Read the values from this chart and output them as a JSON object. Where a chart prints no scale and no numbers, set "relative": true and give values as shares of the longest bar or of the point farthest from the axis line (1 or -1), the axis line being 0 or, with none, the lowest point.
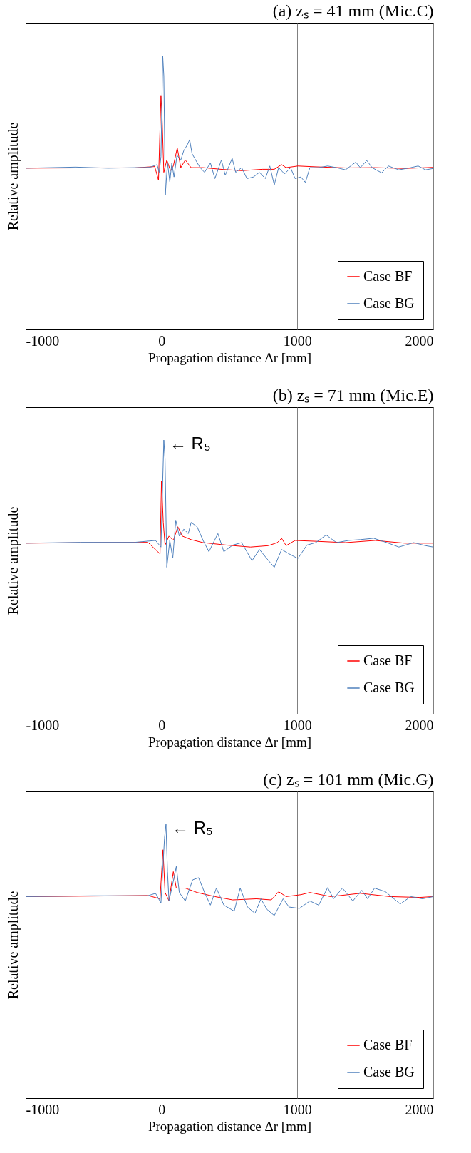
{
  "chart_data": [
    {
      "type": "line",
      "title": "(a) zₛ = 41 mm (Mic.C)",
      "xlabel": "Propagation distance Δr [mm]",
      "ylabel": "Relative amplitude",
      "relative": true,
      "xlim": [
        -1000,
        2000
      ],
      "xticks": [
        -1000,
        0,
        1000,
        2000
      ],
      "grid": "x",
      "legend": "bottom right",
      "series": [
        {
          "name": "Case BF",
          "color": "#ff0000",
          "x": [
            -1000,
            -600,
            -200,
            -50,
            -22,
            -4,
            4,
            17,
            39,
            66,
            87,
            116,
            142,
            175,
            218,
            306,
            437,
            590,
            742,
            830,
            884,
            917,
            1004,
            1135,
            1354,
            1572,
            1790,
            2000
          ],
          "values": [
            0.589,
            0.59,
            0.59,
            0.595,
            0.545,
            0.855,
            0.778,
            0.574,
            0.619,
            0.58,
            0.597,
            0.663,
            0.591,
            0.619,
            0.591,
            0.591,
            0.585,
            0.58,
            0.585,
            0.585,
            0.602,
            0.591,
            0.597,
            0.594,
            0.59,
            0.591,
            0.588,
            0.592
          ]
        },
        {
          "name": "Case BG",
          "color": "#4f81bd",
          "x": [
            -1000,
            -633,
            -393,
            -87,
            -33,
            -17,
            -4,
            9,
            17,
            28,
            44,
            61,
            76,
            92,
            114,
            142,
            164,
            192,
            207,
            225,
            251,
            284,
            317,
            360,
            393,
            441,
            469,
            520,
            546,
            590,
            629,
            677,
            721,
            764,
            797,
            830,
            862,
            906,
            950,
            983,
            1026,
            1059,
            1092,
            1157,
            1223,
            1288,
            1354,
            1430,
            1463,
            1511,
            1550,
            1620,
            1670,
            1747,
            1834,
            1889,
            1943,
            2000
          ],
          "values": [
            0.589,
            0.593,
            0.589,
            0.592,
            0.602,
            0.574,
            0.631,
            1.0,
            0.926,
            0.492,
            0.608,
            0.54,
            0.608,
            0.557,
            0.636,
            0.619,
            0.653,
            0.676,
            0.693,
            0.642,
            0.619,
            0.591,
            0.574,
            0.608,
            0.551,
            0.619,
            0.563,
            0.625,
            0.574,
            0.591,
            0.551,
            0.557,
            0.574,
            0.551,
            0.597,
            0.528,
            0.591,
            0.568,
            0.591,
            0.551,
            0.557,
            0.537,
            0.591,
            0.591,
            0.597,
            0.591,
            0.583,
            0.611,
            0.591,
            0.617,
            0.591,
            0.572,
            0.597,
            0.583,
            0.591,
            0.597,
            0.583,
            0.588
          ]
        }
      ]
    },
    {
      "type": "line",
      "title": "(b) zₛ = 71 mm (Mic.E)",
      "xlabel": "Propagation distance Δr [mm]",
      "ylabel": "Relative amplitude",
      "relative": true,
      "xlim": [
        -1000,
        2000
      ],
      "xticks": [
        -1000,
        0,
        1000,
        2000
      ],
      "grid": "x",
      "legend": "bottom right",
      "annotations": [
        {
          "text": "← R₅",
          "x": 17,
          "y": 1.0
        }
      ],
      "series": [
        {
          "name": "Case BF",
          "color": "#ff0000",
          "x": [
            -1000,
            -500,
            -100,
            -11,
            0,
            13,
            26,
            55,
            87,
            120,
            153,
            218,
            306,
            480,
            655,
            786,
            852,
            884,
            917,
            983,
            1135,
            1354,
            1572,
            1790,
            2000
          ],
          "values": [
            0.623,
            0.625,
            0.626,
            0.584,
            0.851,
            0.699,
            0.616,
            0.649,
            0.633,
            0.683,
            0.649,
            0.636,
            0.625,
            0.616,
            0.609,
            0.614,
            0.625,
            0.641,
            0.614,
            0.633,
            0.63,
            0.625,
            0.633,
            0.623,
            0.623
          ]
        },
        {
          "name": "Case BG",
          "color": "#4f81bd",
          "x": [
            -1000,
            -600,
            -200,
            -44,
            -4,
            17,
            26,
            39,
            61,
            83,
            105,
            131,
            164,
            197,
            218,
            262,
            306,
            349,
            415,
            459,
            524,
            590,
            666,
            721,
            775,
            830,
            884,
            939,
            1004,
            1070,
            1135,
            1212,
            1288,
            1376,
            1463,
            1561,
            1659,
            1747,
            1856,
            1943,
            2000
          ],
          "values": [
            0.623,
            0.626,
            0.626,
            0.633,
            0.609,
            1.0,
            0.93,
            0.535,
            0.633,
            0.568,
            0.707,
            0.649,
            0.674,
            0.658,
            0.699,
            0.683,
            0.633,
            0.592,
            0.658,
            0.592,
            0.616,
            0.625,
            0.559,
            0.6,
            0.567,
            0.535,
            0.6,
            0.584,
            0.567,
            0.616,
            0.625,
            0.653,
            0.625,
            0.633,
            0.636,
            0.641,
            0.625,
            0.609,
            0.625,
            0.614,
            0.609
          ]
        }
      ]
    },
    {
      "type": "line",
      "title": "(c) zₛ = 101 mm (Mic.G)",
      "xlabel": "Propagation distance Δr [mm]",
      "ylabel": "Relative amplitude",
      "relative": true,
      "xlim": [
        -1000,
        2000
      ],
      "xticks": [
        -1000,
        0,
        1000,
        2000
      ],
      "grid": "x",
      "legend": "bottom right",
      "annotations": [
        {
          "text": "← R₅",
          "x": 33,
          "y": 1.0
        }
      ],
      "series": [
        {
          "name": "Case BF",
          "color": "#ff0000",
          "x": [
            -1000,
            -500,
            -100,
            -11,
            11,
            26,
            55,
            87,
            109,
            175,
            262,
            393,
            524,
            699,
            808,
            862,
            917,
            1026,
            1092,
            1245,
            1463,
            1681,
            1900,
            2000
          ],
          "values": [
            0.736,
            0.738,
            0.74,
            0.728,
            0.907,
            0.751,
            0.721,
            0.827,
            0.767,
            0.767,
            0.751,
            0.736,
            0.724,
            0.728,
            0.724,
            0.754,
            0.736,
            0.743,
            0.751,
            0.736,
            0.748,
            0.736,
            0.733,
            0.736
          ]
        },
        {
          "name": "Case BG",
          "color": "#4f81bd",
          "x": [
            -1000,
            -500,
            -100,
            -44,
            -4,
            22,
            33,
            44,
            55,
            76,
            109,
            131,
            175,
            229,
            273,
            317,
            360,
            404,
            459,
            535,
            579,
            633,
            688,
            732,
            775,
            830,
            895,
            939,
            1015,
            1092,
            1157,
            1223,
            1266,
            1332,
            1408,
            1474,
            1517,
            1568,
            1648,
            1757,
            1834,
            1921,
            2000
          ],
          "values": [
            0.736,
            0.739,
            0.739,
            0.748,
            0.713,
            0.95,
            1.0,
            0.827,
            0.721,
            0.767,
            0.846,
            0.751,
            0.72,
            0.797,
            0.805,
            0.751,
            0.705,
            0.767,
            0.705,
            0.683,
            0.767,
            0.698,
            0.675,
            0.728,
            0.69,
            0.667,
            0.728,
            0.698,
            0.693,
            0.72,
            0.705,
            0.769,
            0.728,
            0.767,
            0.72,
            0.759,
            0.728,
            0.767,
            0.754,
            0.709,
            0.736,
            0.728,
            0.736
          ]
        }
      ]
    }
  ]
}
